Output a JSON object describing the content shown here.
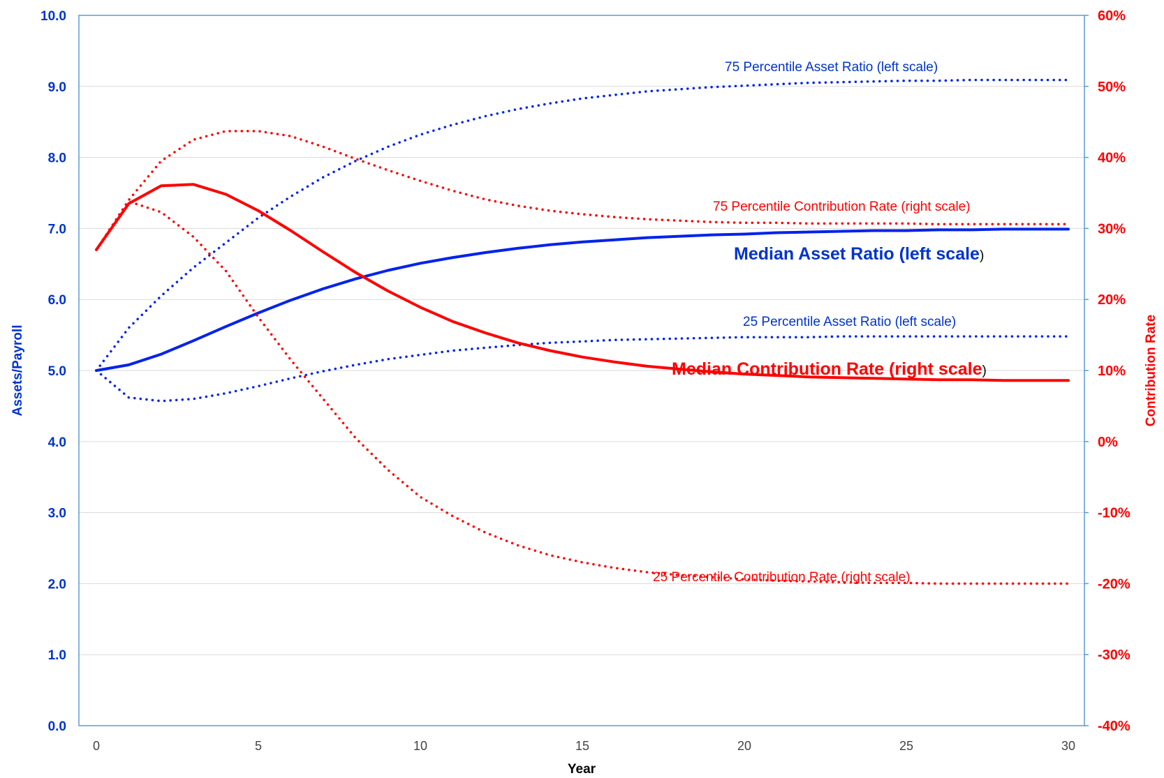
{
  "chart_data": {
    "type": "line",
    "title": "",
    "xlabel": "Year",
    "ylabel_left": "Assets/Payroll",
    "ylabel_right": "Contribution Rate",
    "xlim": [
      0,
      30
    ],
    "ylim_left": [
      0,
      10
    ],
    "ylim_right": [
      -40,
      60
    ],
    "x_ticks": [
      "0",
      "5",
      "10",
      "15",
      "20",
      "25",
      "30"
    ],
    "left_ticks": [
      "0.0",
      "1.0",
      "2.0",
      "3.0",
      "4.0",
      "5.0",
      "6.0",
      "7.0",
      "8.0",
      "9.0",
      "10.0"
    ],
    "right_ticks": [
      "-40%",
      "-30%",
      "-20%",
      "-10%",
      "0%",
      "10%",
      "20%",
      "30%",
      "40%",
      "50%",
      "60%"
    ],
    "grid": true,
    "x": [
      0,
      1,
      2,
      3,
      4,
      5,
      6,
      7,
      8,
      9,
      10,
      11,
      12,
      13,
      14,
      15,
      16,
      17,
      18,
      19,
      20,
      21,
      22,
      23,
      24,
      25,
      26,
      27,
      28,
      29,
      30
    ],
    "series": [
      {
        "name": "Median Asset Ratio (left scale)",
        "axis": "left",
        "color": "#0022ee",
        "style": "solid",
        "values": [
          5.0,
          5.08,
          5.23,
          5.42,
          5.62,
          5.81,
          5.99,
          6.15,
          6.29,
          6.41,
          6.51,
          6.59,
          6.66,
          6.72,
          6.77,
          6.81,
          6.84,
          6.87,
          6.89,
          6.91,
          6.92,
          6.94,
          6.95,
          6.96,
          6.97,
          6.97,
          6.98,
          6.98,
          6.99,
          6.99,
          6.99
        ]
      },
      {
        "name": "75 Percentile Asset Ratio (left scale)",
        "axis": "left",
        "color": "#0022ee",
        "style": "dotted",
        "values": [
          5.0,
          5.6,
          6.05,
          6.45,
          6.8,
          7.15,
          7.45,
          7.72,
          7.95,
          8.15,
          8.32,
          8.46,
          8.58,
          8.68,
          8.76,
          8.83,
          8.88,
          8.93,
          8.96,
          8.99,
          9.01,
          9.03,
          9.05,
          9.06,
          9.07,
          9.08,
          9.08,
          9.09,
          9.09,
          9.09,
          9.09
        ]
      },
      {
        "name": "25 Percentile Asset Ratio (left scale)",
        "axis": "left",
        "color": "#0022ee",
        "style": "dotted",
        "values": [
          5.0,
          4.62,
          4.57,
          4.6,
          4.68,
          4.78,
          4.89,
          4.99,
          5.08,
          5.16,
          5.22,
          5.28,
          5.32,
          5.36,
          5.39,
          5.41,
          5.43,
          5.44,
          5.45,
          5.46,
          5.47,
          5.47,
          5.47,
          5.48,
          5.48,
          5.48,
          5.48,
          5.48,
          5.48,
          5.48,
          5.48
        ]
      },
      {
        "name": "Median Contribution Rate (right scale)",
        "axis": "right",
        "color": "#ff0000",
        "style": "solid",
        "values": [
          27,
          33.5,
          36,
          36.2,
          34.8,
          32.5,
          29.7,
          26.7,
          23.8,
          21.2,
          18.9,
          16.9,
          15.3,
          13.9,
          12.8,
          11.9,
          11.2,
          10.6,
          10.2,
          9.8,
          9.5,
          9.3,
          9.1,
          9.0,
          8.9,
          8.8,
          8.7,
          8.7,
          8.6,
          8.6,
          8.6
        ]
      },
      {
        "name": "75 Percentile Contribution Rate (right scale)",
        "axis": "right",
        "color": "#ff0000",
        "style": "dotted",
        "values": [
          27,
          34,
          39.5,
          42.5,
          43.7,
          43.7,
          43,
          41.5,
          39.8,
          38.2,
          36.7,
          35.3,
          34.1,
          33.2,
          32.5,
          32,
          31.6,
          31.3,
          31.1,
          30.9,
          30.8,
          30.8,
          30.7,
          30.7,
          30.7,
          30.7,
          30.6,
          30.6,
          30.6,
          30.6,
          30.6
        ]
      },
      {
        "name": "25 Percentile Contribution Rate (right scale)",
        "axis": "right",
        "color": "#ff0000",
        "style": "dotted",
        "values": [
          27,
          33.8,
          32.3,
          28.8,
          24,
          17.5,
          11.5,
          6,
          0.5,
          -4,
          -7.8,
          -10.5,
          -12.8,
          -14.6,
          -16,
          -17,
          -17.8,
          -18.4,
          -18.8,
          -19.1,
          -19.4,
          -19.6,
          -19.7,
          -19.8,
          -19.9,
          -19.9,
          -20,
          -20,
          -20,
          -20,
          -20
        ]
      }
    ]
  },
  "annotations": [
    {
      "name": "annotation-75-asset",
      "text": "75 Percentile Asset Ratio (left scale)",
      "color": "#0033cc"
    },
    {
      "name": "annotation-75-contribution",
      "text": "75 Percentile Contribution Rate (right scale)",
      "color": "#ff0000"
    },
    {
      "name": "annotation-median-asset",
      "text": "Median Asset Ratio (left scale",
      "suffix": ")",
      "color": "#0033cc"
    },
    {
      "name": "annotation-25-asset",
      "text": "25 Percentile Asset Ratio (left scale)",
      "color": "#0033cc"
    },
    {
      "name": "annotation-median-contribution",
      "text": "Median Contribution Rate (right scale",
      "suffix": ")",
      "color": "#ff0000"
    },
    {
      "name": "annotation-25-contribution",
      "text": "25 Percentile Contribution Rate (right scale)",
      "color": "#ff0000"
    }
  ],
  "colors": {
    "left_axis": "#0033cc",
    "right_axis": "#ff0000",
    "frame": "#5b9bd5",
    "grid": "#d9d9d9"
  }
}
